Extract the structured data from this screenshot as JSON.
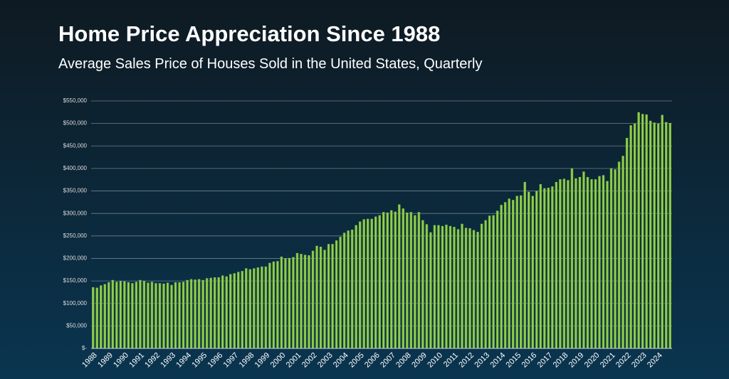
{
  "chart_data": {
    "type": "bar",
    "title": "Home Price Appreciation Since 1988",
    "subtitle": "Average Sales Price of Houses Sold in the United States, Quarterly",
    "categories": [
      "1988",
      null,
      null,
      null,
      "1989",
      null,
      null,
      null,
      "1990",
      null,
      null,
      null,
      "1991",
      null,
      null,
      null,
      "1992",
      null,
      null,
      null,
      "1993",
      null,
      null,
      null,
      "1994",
      null,
      null,
      null,
      "1995",
      null,
      null,
      null,
      "1996",
      null,
      null,
      null,
      "1997",
      null,
      null,
      null,
      "1998",
      null,
      null,
      null,
      "1999",
      null,
      null,
      null,
      "2000",
      null,
      null,
      null,
      "2001",
      null,
      null,
      null,
      "2002",
      null,
      null,
      null,
      "2003",
      null,
      null,
      null,
      "2004",
      null,
      null,
      null,
      "2005",
      null,
      null,
      null,
      "2006",
      null,
      null,
      null,
      "2007",
      null,
      null,
      null,
      "2008",
      null,
      null,
      null,
      "2009",
      null,
      null,
      null,
      "2010",
      null,
      null,
      null,
      "2011",
      null,
      null,
      null,
      "2012",
      null,
      null,
      null,
      "2013",
      null,
      null,
      null,
      "2014",
      null,
      null,
      null,
      "2015",
      null,
      null,
      null,
      "2016",
      null,
      null,
      null,
      "2017",
      null,
      null,
      null,
      "2018",
      null,
      null,
      null,
      "2019",
      null,
      null,
      null,
      "2020",
      null,
      null,
      null,
      "2021",
      null,
      null,
      null,
      "2022",
      null,
      null,
      null,
      "2023",
      null,
      null,
      null,
      "2024",
      null,
      null,
      null
    ],
    "values": [
      136000,
      135000,
      140000,
      143000,
      147000,
      152000,
      148000,
      150000,
      149000,
      147000,
      145000,
      148000,
      152000,
      150000,
      146000,
      148000,
      145000,
      145000,
      144000,
      146000,
      141000,
      147000,
      147000,
      148000,
      152000,
      154000,
      153000,
      154000,
      152000,
      156000,
      157000,
      158000,
      158000,
      162000,
      160000,
      165000,
      167000,
      170000,
      172000,
      178000,
      176000,
      178000,
      180000,
      182000,
      182000,
      190000,
      193000,
      194000,
      204000,
      200000,
      201000,
      203000,
      212000,
      210000,
      208000,
      207000,
      217000,
      228000,
      226000,
      219000,
      232000,
      232000,
      240000,
      248000,
      257000,
      262000,
      264000,
      274000,
      282000,
      287000,
      288000,
      288000,
      293000,
      296000,
      303000,
      302000,
      307000,
      304000,
      320000,
      311000,
      302000,
      303000,
      296000,
      303000,
      285000,
      276000,
      258000,
      274000,
      274000,
      272000,
      275000,
      272000,
      270000,
      265000,
      277000,
      268000,
      267000,
      263000,
      259000,
      277000,
      285000,
      295000,
      296000,
      306000,
      319000,
      325000,
      333000,
      330000,
      339000,
      340000,
      370000,
      348000,
      339000,
      350000,
      365000,
      356000,
      357000,
      360000,
      370000,
      376000,
      377000,
      374000,
      400000,
      378000,
      381000,
      393000,
      381000,
      376000,
      376000,
      383000,
      385000,
      372000,
      400000,
      398000,
      415000,
      428000,
      468000,
      496000,
      500000,
      525000,
      521000,
      520000,
      506000,
      502000,
      500000,
      519000,
      503000,
      501000
    ],
    "color": "#7fc540",
    "ylim": [
      0,
      550000
    ],
    "yticks": [
      {
        "value": 0,
        "label": "$-"
      },
      {
        "value": 50000,
        "label": "$50,000"
      },
      {
        "value": 100000,
        "label": "$100,000"
      },
      {
        "value": 150000,
        "label": "$150,000"
      },
      {
        "value": 200000,
        "label": "$200,000"
      },
      {
        "value": 250000,
        "label": "$250,000"
      },
      {
        "value": 300000,
        "label": "$300,000"
      },
      {
        "value": 350000,
        "label": "$350,000"
      },
      {
        "value": 400000,
        "label": "$400,000"
      },
      {
        "value": 450000,
        "label": "$450,000"
      },
      {
        "value": 500000,
        "label": "$500,000"
      },
      {
        "value": 550000,
        "label": "$550,000"
      }
    ],
    "grid": true
  }
}
